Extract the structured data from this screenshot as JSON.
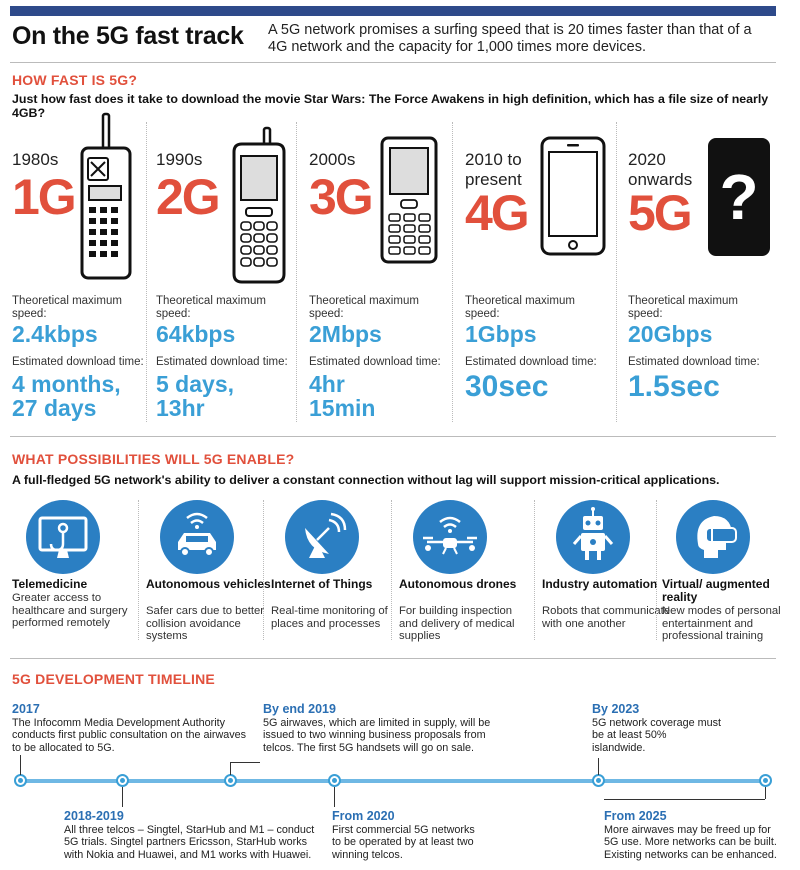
{
  "header": {
    "title": "On the 5G fast track",
    "intro": "A 5G network promises a surfing speed that is 20 times faster than that of a 4G network and the capacity for 1,000 times more devices."
  },
  "speed_section": {
    "heading": "HOW FAST IS 5G?",
    "subheading": "Just how fast does it take to download the movie Star Wars: The Force Awakens in high definition, which has a file size of nearly 4GB?",
    "speed_label": "Theoretical maximum speed:",
    "download_label": "Estimated download time:",
    "generations": [
      {
        "era": "1980s",
        "gen": "1G",
        "speed": "2.4kbps",
        "time": "4 months, 27 days",
        "icon": "brick-phone-icon"
      },
      {
        "era": "1990s",
        "gen": "2G",
        "speed": "64kbps",
        "time": "5 days, 13hr",
        "icon": "candybar-phone-icon"
      },
      {
        "era": "2000s",
        "gen": "3G",
        "speed": "2Mbps",
        "time": "4hr 15min",
        "icon": "feature-phone-icon"
      },
      {
        "era": "2010 to present",
        "gen": "4G",
        "speed": "1Gbps",
        "time": "30sec",
        "icon": "smartphone-icon"
      },
      {
        "era": "2020 onwards",
        "gen": "5G",
        "speed": "20Gbps",
        "time": "1.5sec",
        "icon": "question-phone-icon",
        "glyph": "?"
      }
    ]
  },
  "possibilities_section": {
    "heading": "WHAT POSSIBILITIES WILL 5G ENABLE?",
    "subheading": "A full-fledged 5G network's ability to deliver a constant connection without lag will support mission-critical applications.",
    "items": [
      {
        "title": "Telemedicine",
        "desc": "Greater access to healthcare and surgery performed remotely",
        "icon": "stethoscope-monitor-icon"
      },
      {
        "title": "Autonomous vehicles",
        "desc": "Safer cars due to better collision avoidance systems",
        "icon": "connected-car-icon"
      },
      {
        "title": "Internet of Things",
        "desc": "Real-time monitoring of places and processes",
        "icon": "satellite-dish-icon"
      },
      {
        "title": "Autonomous drones",
        "desc": "For building inspection and delivery of medical supplies",
        "icon": "drone-icon"
      },
      {
        "title": "Industry automation",
        "desc": "Robots that communicate with one another",
        "icon": "robot-icon"
      },
      {
        "title": "Virtual/ augmented reality",
        "desc": "New modes of personal entertainment and professional training",
        "icon": "vr-headset-icon"
      }
    ]
  },
  "timeline_section": {
    "heading": "5G DEVELOPMENT TIMELINE",
    "events": [
      {
        "year": "2017",
        "text": "The Infocomm Media Development Authority conducts first public consultation on the airwaves to be allocated to 5G."
      },
      {
        "year": "2018-2019",
        "text": "All three telcos – Singtel, StarHub and M1 – conduct 5G trials. Singtel partners Ericsson, StarHub works with Nokia and Huawei, and M1 works with Huawei."
      },
      {
        "year": "By end 2019",
        "text": "5G airwaves, which are limited in supply, will be issued to two winning business proposals from telcos. The first 5G handsets will go on sale."
      },
      {
        "year": "From 2020",
        "text": "First commercial 5G networks to be operated by at least two winning telcos."
      },
      {
        "year": "By 2023",
        "text": "5G network coverage must be at least 50% islandwide."
      },
      {
        "year": "From 2025",
        "text": "More airwaves may be freed up for 5G use. More networks can be built. Existing networks can be enhanced."
      }
    ]
  },
  "colors": {
    "accent": "#e1503c",
    "blue": "#3a9fd6",
    "icon_blue": "#2b7fc3",
    "bar": "#2e4a8a"
  }
}
